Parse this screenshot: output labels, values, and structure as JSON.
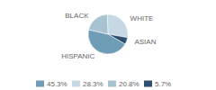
{
  "chart_data": {
    "type": "pie",
    "categories": [
      "WHITE",
      "ASIAN",
      "HISPANIC",
      "BLACK"
    ],
    "values": [
      28.3,
      5.7,
      45.3,
      20.8
    ],
    "colors": [
      "#c5d8e4",
      "#2d5070",
      "#6e9db5",
      "#a8c3d0"
    ],
    "legend": "bottom",
    "legend_entries": [
      {
        "name": "45.3%",
        "color": "#6e9db5"
      },
      {
        "name": "28.3%",
        "color": "#c5d8e4"
      },
      {
        "name": "20.8%",
        "color": "#a8c3d0"
      },
      {
        "name": "5.7%",
        "color": "#2d5070"
      }
    ]
  }
}
